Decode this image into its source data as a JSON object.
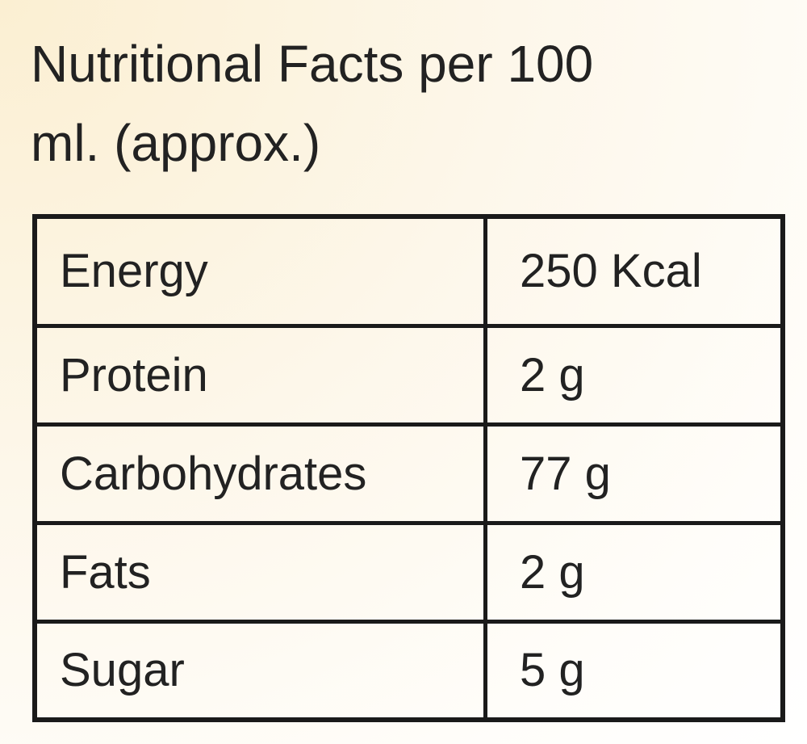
{
  "header": {
    "title_lines": [
      "Nutritional Facts per 100",
      "ml. (approx.)"
    ]
  },
  "table": {
    "rows": [
      [
        "Energy",
        "250 Kcal"
      ],
      [
        "Protein",
        "2 g"
      ],
      [
        "Carbohydrates",
        "77 g"
      ],
      [
        "Fats",
        "2 g"
      ],
      [
        "Sugar",
        "5 g"
      ]
    ]
  }
}
